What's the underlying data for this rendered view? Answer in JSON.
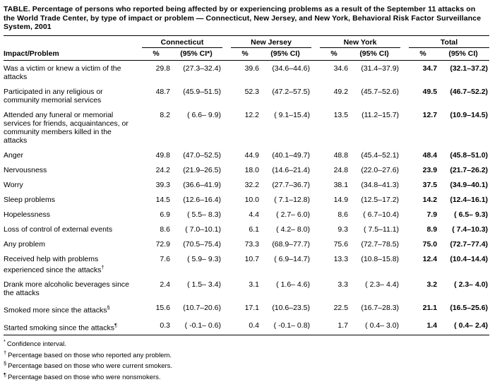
{
  "title": "TABLE. Percentage of persons who reported being affected by or experiencing problems as a result of the September 11 attacks on the World Trade Center, by type of impact or problem — Connecticut, New Jersey, and New York, Behavioral Risk Factor Surveillance System, 2001",
  "table": {
    "row_header": "Impact/Problem",
    "groups": [
      {
        "label": "Connecticut",
        "pct_header": "%",
        "ci_header": "(95% CI*)"
      },
      {
        "label": "New Jersey",
        "pct_header": "%",
        "ci_header": "(95% CI)"
      },
      {
        "label": "New York",
        "pct_header": "%",
        "ci_header": "(95% CI)"
      },
      {
        "label": "Total",
        "pct_header": "%",
        "ci_header": "(95% CI)"
      }
    ],
    "rows": [
      {
        "label": "Was a victim or knew a victim of the attacks",
        "sup": "",
        "values": [
          [
            "29.8",
            "(27.3–32.4)"
          ],
          [
            "39.6",
            "(34.6–44.6)"
          ],
          [
            "34.6",
            "(31.4–37.9)"
          ],
          [
            "34.7",
            "(32.1–37.2)"
          ]
        ]
      },
      {
        "label": "Participated in any religious or community memorial services",
        "sup": "",
        "values": [
          [
            "48.7",
            "(45.9–51.5)"
          ],
          [
            "52.3",
            "(47.2–57.5)"
          ],
          [
            "49.2",
            "(45.7–52.6)"
          ],
          [
            "49.5",
            "(46.7–52.2)"
          ]
        ]
      },
      {
        "label": "Attended any funeral or memorial services for friends, acquaintances, or community members killed in the attacks",
        "sup": "",
        "values": [
          [
            "8.2",
            "( 6.6– 9.9)"
          ],
          [
            "12.2",
            "( 9.1–15.4)"
          ],
          [
            "13.5",
            "(11.2–15.7)"
          ],
          [
            "12.7",
            "(10.9–14.5)"
          ]
        ]
      },
      {
        "label": "Anger",
        "sup": "",
        "values": [
          [
            "49.8",
            "(47.0–52.5)"
          ],
          [
            "44.9",
            "(40.1–49.7)"
          ],
          [
            "48.8",
            "(45.4–52.1)"
          ],
          [
            "48.4",
            "(45.8–51.0)"
          ]
        ]
      },
      {
        "label": "Nervousness",
        "sup": "",
        "values": [
          [
            "24.2",
            "(21.9–26.5)"
          ],
          [
            "18.0",
            "(14.6–21.4)"
          ],
          [
            "24.8",
            "(22.0–27.6)"
          ],
          [
            "23.9",
            "(21.7–26.2)"
          ]
        ]
      },
      {
        "label": "Worry",
        "sup": "",
        "values": [
          [
            "39.3",
            "(36.6–41.9)"
          ],
          [
            "32.2",
            "(27.7–36.7)"
          ],
          [
            "38.1",
            "(34.8–41.3)"
          ],
          [
            "37.5",
            "(34.9–40.1)"
          ]
        ]
      },
      {
        "label": "Sleep problems",
        "sup": "",
        "values": [
          [
            "14.5",
            "(12.6–16.4)"
          ],
          [
            "10.0",
            "( 7.1–12.8)"
          ],
          [
            "14.9",
            "(12.5–17.2)"
          ],
          [
            "14.2",
            "(12.4–16.1)"
          ]
        ]
      },
      {
        "label": "Hopelessness",
        "sup": "",
        "values": [
          [
            "6.9",
            "( 5.5– 8.3)"
          ],
          [
            "4.4",
            "( 2.7– 6.0)"
          ],
          [
            "8.6",
            "( 6.7–10.4)"
          ],
          [
            "7.9",
            "( 6.5– 9.3)"
          ]
        ]
      },
      {
        "label": "Loss of control of external events",
        "sup": "",
        "values": [
          [
            "8.6",
            "( 7.0–10.1)"
          ],
          [
            "6.1",
            "( 4.2– 8.0)"
          ],
          [
            "9.3",
            "( 7.5–11.1)"
          ],
          [
            "8.9",
            "( 7.4–10.3)"
          ]
        ]
      },
      {
        "label": "Any problem",
        "sup": "",
        "values": [
          [
            "72.9",
            "(70.5–75.4)"
          ],
          [
            "73.3",
            "(68.9–77.7)"
          ],
          [
            "75.6",
            "(72.7–78.5)"
          ],
          [
            "75.0",
            "(72.7–77.4)"
          ]
        ]
      },
      {
        "label": "Received help with problems experienced since the attacks",
        "sup": "†",
        "values": [
          [
            "7.6",
            "( 5.9– 9.3)"
          ],
          [
            "10.7",
            "( 6.9–14.7)"
          ],
          [
            "13.3",
            "(10.8–15.8)"
          ],
          [
            "12.4",
            "(10.4–14.4)"
          ]
        ]
      },
      {
        "label": "Drank more alcoholic beverages since the attacks",
        "sup": "",
        "values": [
          [
            "2.4",
            "( 1.5– 3.4)"
          ],
          [
            "3.1",
            "( 1.6– 4.6)"
          ],
          [
            "3.3",
            "( 2.3– 4.4)"
          ],
          [
            "3.2",
            "( 2.3– 4.0)"
          ]
        ]
      },
      {
        "label": "Smoked more since the attacks",
        "sup": "§",
        "values": [
          [
            "15.6",
            "(10.7–20.6)"
          ],
          [
            "17.1",
            "(10.6–23.5)"
          ],
          [
            "22.5",
            "(16.7–28.3)"
          ],
          [
            "21.1",
            "(16.5–25.6)"
          ]
        ]
      },
      {
        "label": "Started smoking since the attacks",
        "sup": "¶",
        "values": [
          [
            "0.3",
            "( -0.1– 0.6)"
          ],
          [
            "0.4",
            "( -0.1– 0.8)"
          ],
          [
            "1.7",
            "( 0.4– 3.0)"
          ],
          [
            "1.4",
            "( 0.4– 2.4)"
          ]
        ]
      }
    ]
  },
  "footnotes": [
    {
      "sym": "*",
      "text": "Confidence interval."
    },
    {
      "sym": "†",
      "text": "Percentage based on those who reported any problem."
    },
    {
      "sym": "§",
      "text": "Percentage based on those who were current smokers."
    },
    {
      "sym": "¶",
      "text": "Percentage based on those who were nonsmokers."
    }
  ]
}
